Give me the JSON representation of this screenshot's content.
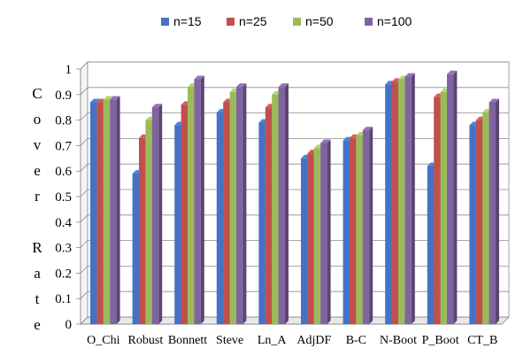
{
  "chart_data": {
    "type": "bar",
    "categories": [
      "O_Chi",
      "Robust",
      "Bonnett",
      "Steve",
      "Ln_A",
      "AdjDF",
      "B-C",
      "N-Boot",
      "P_Boot",
      "CT_B"
    ],
    "series": [
      {
        "name": "n=15",
        "color": "#4472C4",
        "values": [
          0.87,
          0.59,
          0.78,
          0.83,
          0.79,
          0.65,
          0.72,
          0.94,
          0.62,
          0.78
        ]
      },
      {
        "name": "n=25",
        "color": "#C0504D",
        "values": [
          0.87,
          0.73,
          0.86,
          0.87,
          0.85,
          0.67,
          0.73,
          0.95,
          0.89,
          0.8
        ]
      },
      {
        "name": "n=50",
        "color": "#9BBB59",
        "values": [
          0.88,
          0.8,
          0.93,
          0.91,
          0.9,
          0.69,
          0.74,
          0.96,
          0.91,
          0.83
        ]
      },
      {
        "name": "n=100",
        "color": "#8064A2",
        "values": [
          0.88,
          0.85,
          0.96,
          0.93,
          0.93,
          0.71,
          0.76,
          0.97,
          0.98,
          0.87
        ]
      }
    ],
    "ylabel_letters": [
      "C",
      "o",
      "v",
      "e",
      "r",
      "",
      "R",
      "a",
      "t",
      "e"
    ],
    "yticks": [
      "0",
      "0.1",
      "0.2",
      "0.3",
      "0.4",
      "0.5",
      "0.6",
      "0.7",
      "0.8",
      "0.9",
      "1"
    ],
    "ylim": [
      0,
      1
    ],
    "grid": true,
    "legend_position": "top-center"
  }
}
